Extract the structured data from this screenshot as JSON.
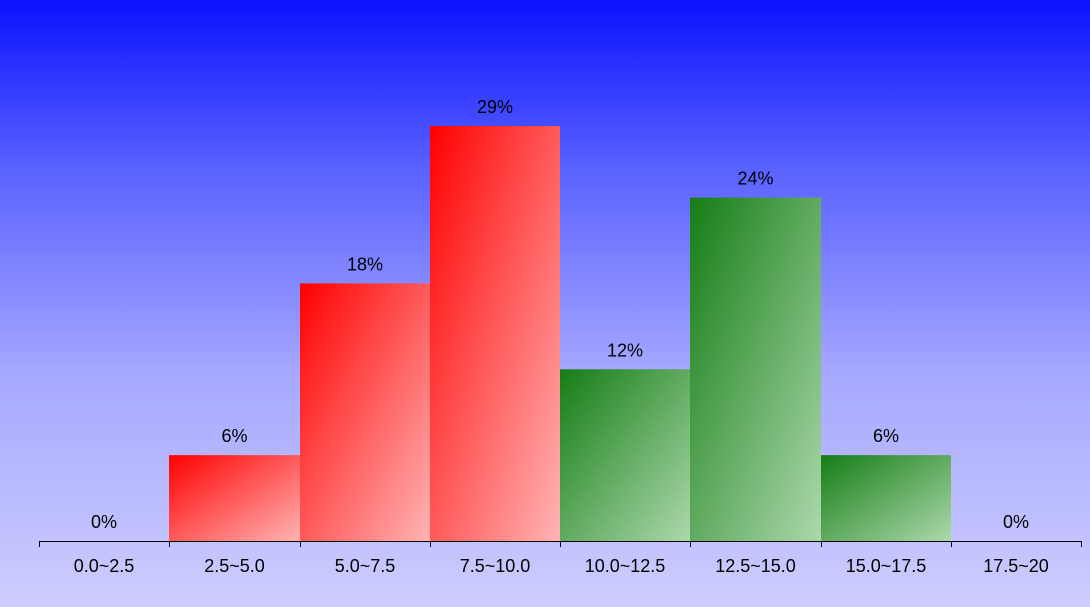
{
  "chart_data": {
    "type": "bar",
    "title": "",
    "xlabel": "",
    "ylabel": "",
    "categories": [
      "0.0~2.5",
      "2.5~5.0",
      "5.0~7.5",
      "7.5~10.0",
      "10.0~12.5",
      "12.5~15.0",
      "15.0~17.5",
      "17.5~20"
    ],
    "values": [
      0,
      6,
      18,
      29,
      12,
      24,
      6,
      0
    ],
    "value_labels": [
      "0%",
      "6%",
      "18%",
      "29%",
      "12%",
      "24%",
      "6%",
      "0%"
    ],
    "value_suffix": "%",
    "ylim": [
      0,
      29
    ],
    "grid": false,
    "legend": "none",
    "bar_colors": [
      "#ff0000",
      "#ff0000",
      "#ff0000",
      "#ff0000",
      "#157d15",
      "#157d15",
      "#157d15",
      "#157d15"
    ],
    "bar_light_color_red": "#ffb4b4",
    "bar_light_color_green": "#acd8ac"
  }
}
